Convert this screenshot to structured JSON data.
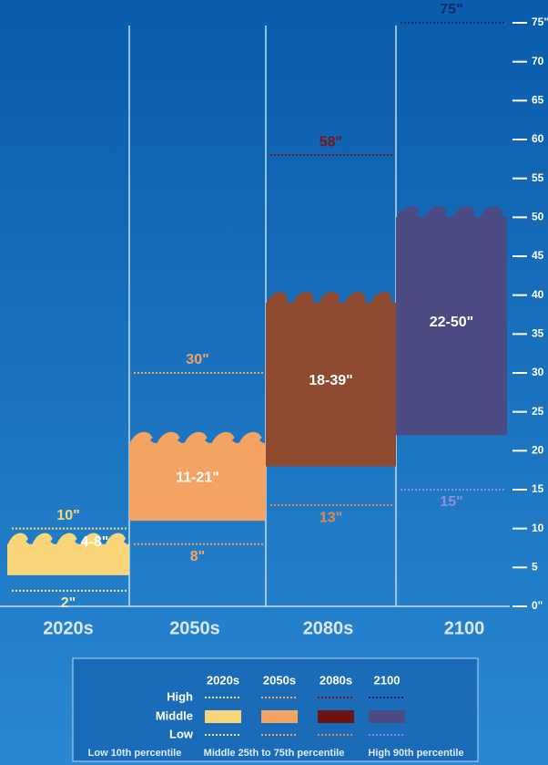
{
  "chart_data": {
    "type": "range",
    "categories": [
      "2020s",
      "2050s",
      "2080s",
      "2100"
    ],
    "category_colors": [
      "#f9d67a",
      "#f4a462",
      "#8f4b30",
      "#4b4a82"
    ],
    "legend_colors": [
      "#f9d67a",
      "#f4a462",
      "#6e1410",
      "#4b4a82"
    ],
    "series": [
      {
        "name": "High",
        "values": [
          10,
          30,
          58,
          75
        ],
        "value_labels": [
          "10\"",
          "30\"",
          "58\"",
          "75\""
        ],
        "label_colors": [
          "#f9d67a",
          "#f4a462",
          "#7a1510",
          "#0a2a6a"
        ]
      },
      {
        "name": "Middle",
        "low": [
          4,
          11,
          18,
          22
        ],
        "high": [
          8,
          21,
          39,
          50
        ],
        "value_labels": [
          "4-8\"",
          "11-21\"",
          "18-39\"",
          "22-50\""
        ]
      },
      {
        "name": "Low",
        "values": [
          2,
          8,
          13,
          15
        ],
        "value_labels": [
          "2\"",
          "8\"",
          "13\"",
          "15\""
        ],
        "label_colors": [
          "#f9e7a8",
          "#f4a462",
          "#e08a50",
          "#8f8fd8"
        ]
      }
    ],
    "ylim": [
      0,
      75
    ],
    "yticks": [
      {
        "value": 0,
        "label": "0\""
      },
      5,
      10,
      15,
      20,
      25,
      30,
      35,
      40,
      45,
      50,
      55,
      60,
      65,
      70,
      {
        "value": 75,
        "label": "75\""
      }
    ],
    "legend_notes": [
      "Low 10th percentile",
      "Middle 25th to 75th percentile",
      "High 90th percentile"
    ]
  }
}
